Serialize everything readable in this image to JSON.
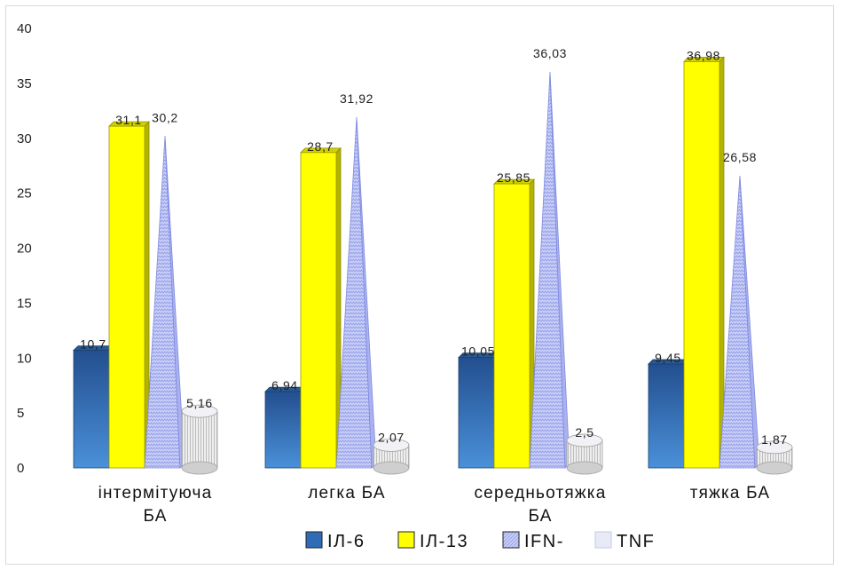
{
  "chart_data": {
    "type": "bar",
    "categories": [
      "інтермітуюча БА",
      "легка БА",
      "середньотяжка БА",
      "тяжка БА"
    ],
    "series": [
      {
        "name": "ІЛ-6",
        "values": [
          10.7,
          6.94,
          10.05,
          9.45
        ],
        "labels": [
          "10,7",
          "6,94",
          "10,05",
          "9,45"
        ],
        "color": "#2f6cb5",
        "shape": "box"
      },
      {
        "name": "ІЛ-13",
        "values": [
          31.1,
          28.7,
          25.85,
          36.98
        ],
        "labels": [
          "31,1",
          "28,7",
          "25,85",
          "36,98"
        ],
        "color": "#ffff00",
        "shape": "box"
      },
      {
        "name": "IFN-",
        "values": [
          30.2,
          31.92,
          36.03,
          26.58
        ],
        "labels": [
          "30,2",
          "31,92",
          "36,03",
          "26,58"
        ],
        "color": "#aab3f0",
        "shape": "pyramid"
      },
      {
        "name": "TNF",
        "values": [
          5.16,
          2.07,
          2.5,
          1.87
        ],
        "labels": [
          "5,16",
          "2,07",
          "2,5",
          "1,87"
        ],
        "color": "#d9dcf2",
        "shape": "cylinder"
      }
    ],
    "y_ticks": [
      "0",
      "5",
      "10",
      "15",
      "20",
      "25",
      "30",
      "35",
      "40"
    ],
    "ylim": [
      0,
      40
    ],
    "title": "",
    "xlabel": "",
    "ylabel": "",
    "grid": false,
    "legend_position": "bottom"
  }
}
